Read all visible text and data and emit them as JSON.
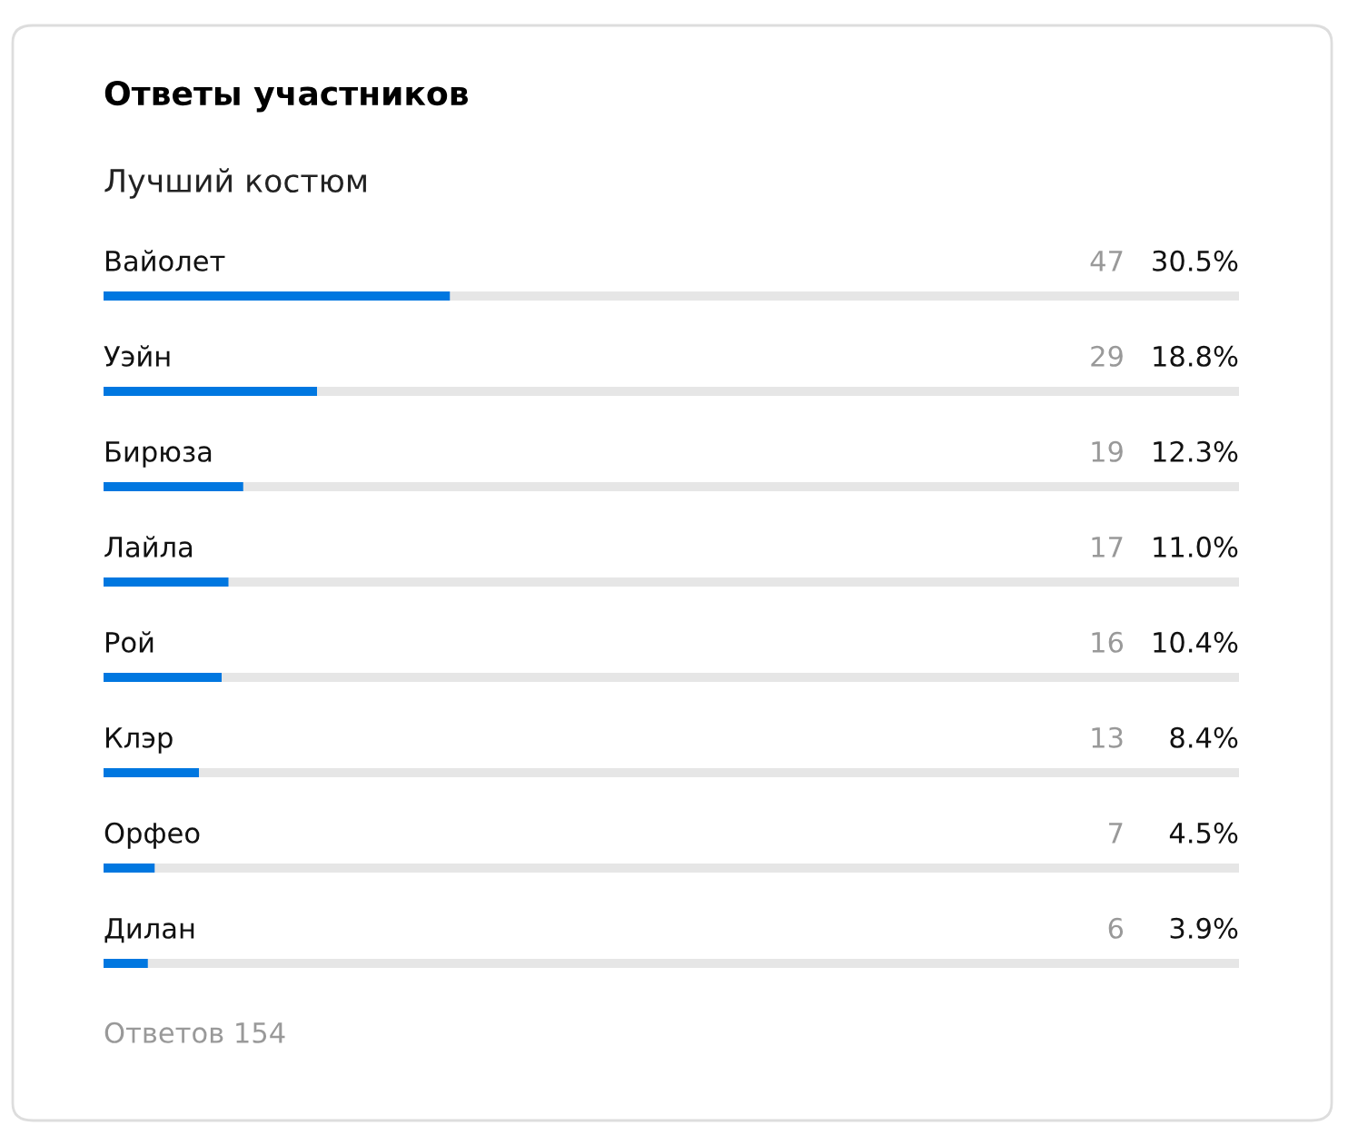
{
  "chart_data": {
    "type": "bar",
    "orientation": "horizontal",
    "title": "Ответы участников",
    "subtitle": "Лучший костюм",
    "categories": [
      "Вайолет",
      "Уэйн",
      "Бирюза",
      "Лайла",
      "Рой",
      "Клэр",
      "Орфео",
      "Дилан"
    ],
    "values": [
      30.5,
      18.8,
      12.3,
      11.0,
      10.4,
      8.4,
      4.5,
      3.9
    ],
    "value_labels": [
      "30.5%",
      "18.8%",
      "12.3%",
      "11.0%",
      "10.4%",
      "8.4%",
      "4.5%",
      "3.9%"
    ],
    "color": "#0077e0",
    "xlim": [
      0,
      100
    ],
    "annotations": [
      "47",
      "29",
      "19",
      "17",
      "16",
      "13",
      "7",
      "6",
      "Ответов 154"
    ]
  }
}
